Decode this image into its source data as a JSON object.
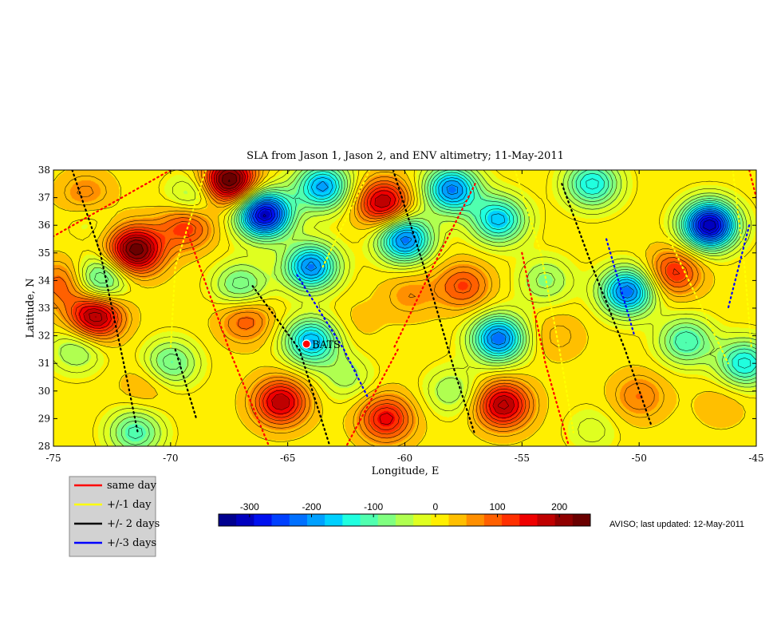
{
  "chart_data": {
    "type": "heatmap",
    "title": "SLA from Jason 1, Jason 2, and ENV altimetry;  11-May-2011",
    "xlabel": "Longitude, E",
    "ylabel": "Latitude, N",
    "xlim": [
      -75,
      -45
    ],
    "ylim": [
      28,
      38
    ],
    "x_ticks": [
      -75,
      -70,
      -65,
      -60,
      -55,
      -50,
      -45
    ],
    "y_ticks": [
      28,
      29,
      30,
      31,
      32,
      33,
      34,
      35,
      36,
      37,
      38
    ],
    "colorbar": {
      "range": [
        -350,
        250
      ],
      "ticks": [
        -300,
        -200,
        -100,
        0,
        100,
        200
      ],
      "colors": [
        "#00008f",
        "#0000bf",
        "#0010ef",
        "#0040ff",
        "#0070ff",
        "#00a0ff",
        "#00d0ff",
        "#20ffdf",
        "#50ffaf",
        "#80ff80",
        "#b0ff50",
        "#dfff20",
        "#ffef00",
        "#ffbf00",
        "#ff8f00",
        "#ff6000",
        "#ff3000",
        "#ef0000",
        "#bf0000",
        "#8f0000",
        "#6a0000"
      ]
    },
    "station": {
      "name": "BATS",
      "lon": -64.2,
      "lat": 31.7
    },
    "features": [
      {
        "lon": -66.0,
        "lat": 36.4,
        "sla": -320
      },
      {
        "lon": -47.0,
        "lat": 36.0,
        "sla": -330
      },
      {
        "lon": -58.0,
        "lat": 37.3,
        "sla": -220
      },
      {
        "lon": -63.5,
        "lat": 37.4,
        "sla": -200
      },
      {
        "lon": -60.0,
        "lat": 35.5,
        "sla": -230
      },
      {
        "lon": -64.0,
        "lat": 34.5,
        "sla": -220
      },
      {
        "lon": -56.0,
        "lat": 36.2,
        "sla": -180
      },
      {
        "lon": -52.0,
        "lat": 37.5,
        "sla": -160
      },
      {
        "lon": -56.0,
        "lat": 31.9,
        "sla": -230
      },
      {
        "lon": -50.5,
        "lat": 33.6,
        "sla": -230
      },
      {
        "lon": -64.0,
        "lat": 31.8,
        "sla": -190
      },
      {
        "lon": -45.5,
        "lat": 31.0,
        "sla": -160
      },
      {
        "lon": -48.0,
        "lat": 31.8,
        "sla": -130
      },
      {
        "lon": -67.0,
        "lat": 33.8,
        "sla": -110
      },
      {
        "lon": -73.0,
        "lat": 34.0,
        "sla": -140
      },
      {
        "lon": -70.0,
        "lat": 31.0,
        "sla": -110
      },
      {
        "lon": -71.5,
        "lat": 28.5,
        "sla": -120
      },
      {
        "lon": -74.0,
        "lat": 31.5,
        "sla": -80
      },
      {
        "lon": -58.0,
        "lat": 30.0,
        "sla": -70
      },
      {
        "lon": -62.5,
        "lat": 30.5,
        "sla": -60
      },
      {
        "lon": -54.0,
        "lat": 34.0,
        "sla": -80
      },
      {
        "lon": -69.0,
        "lat": 37.0,
        "sla": -90
      },
      {
        "lon": -73.5,
        "lat": 36.4,
        "sla": -50
      },
      {
        "lon": -52.0,
        "lat": 28.6,
        "sla": -40
      },
      {
        "lon": -67.5,
        "lat": 37.6,
        "sla": 250
      },
      {
        "lon": -71.5,
        "lat": 35.1,
        "sla": 230
      },
      {
        "lon": -73.2,
        "lat": 32.7,
        "sla": 200
      },
      {
        "lon": -60.9,
        "lat": 36.8,
        "sla": 180
      },
      {
        "lon": -55.8,
        "lat": 29.5,
        "sla": 180
      },
      {
        "lon": -65.3,
        "lat": 29.6,
        "sla": 170
      },
      {
        "lon": -60.8,
        "lat": 29.0,
        "sla": 140
      },
      {
        "lon": -69.3,
        "lat": 36.0,
        "sla": 120
      },
      {
        "lon": -48.5,
        "lat": 34.3,
        "sla": 120
      },
      {
        "lon": -66.8,
        "lat": 32.6,
        "sla": 90
      },
      {
        "lon": -74.6,
        "lat": 33.9,
        "sla": 90
      },
      {
        "lon": -57.5,
        "lat": 33.8,
        "sla": 100
      },
      {
        "lon": -73.6,
        "lat": 37.0,
        "sla": 80
      },
      {
        "lon": -50.0,
        "lat": 29.8,
        "sla": 70
      },
      {
        "lon": -59.8,
        "lat": 33.5,
        "sla": 50
      },
      {
        "lon": -71.0,
        "lat": 30.2,
        "sla": 40
      },
      {
        "lon": -53.5,
        "lat": 32.0,
        "sla": 40
      },
      {
        "lon": -46.5,
        "lat": 29.5,
        "sla": 30
      },
      {
        "lon": -62.0,
        "lat": 32.5,
        "sla": 20
      }
    ],
    "track_colors": {
      "same_day": "#ff0000",
      "one_day": "#ffff00",
      "two_days": "#000000",
      "three_days": "#0000ff"
    }
  },
  "legend": [
    {
      "label": "same day",
      "color": "#ff0000"
    },
    {
      "label": "+/-1 day",
      "color": "#ffff00"
    },
    {
      "label": "+/- 2 days",
      "color": "#000000"
    },
    {
      "label": "+/-3 days",
      "color": "#0000ff"
    }
  ],
  "credit": "AVISO; last updated: 12-May-2011"
}
